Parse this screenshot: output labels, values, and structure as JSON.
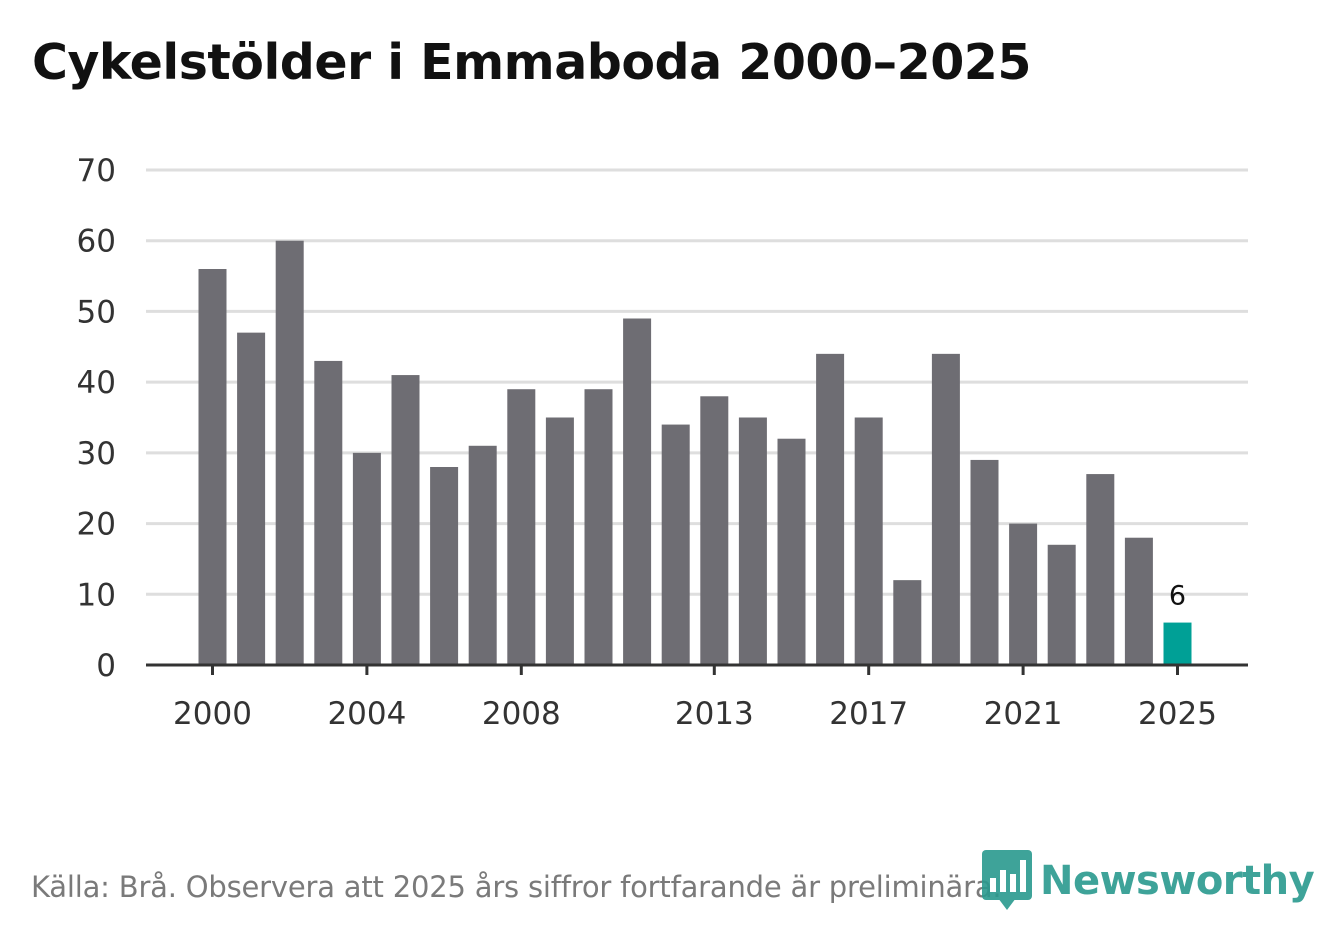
{
  "title": "Cykelstölder i Emmaboda 2000–2025",
  "source": "Källa: Brå. Observera att 2025 års siffror fortfarande är preliminära.",
  "brand": {
    "name": "Newsworthy",
    "icon": "newsworthy-logo-icon",
    "color": "#2a9a8e"
  },
  "colors": {
    "bar": "#6e6d73",
    "highlight": "#00a096",
    "grid": "#dedede",
    "axis": "#333333"
  },
  "chart_data": {
    "type": "bar",
    "title": "Cykelstölder i Emmaboda 2000–2025",
    "xlabel": "",
    "ylabel": "",
    "categories": [
      "2000",
      "2001",
      "2002",
      "2003",
      "2004",
      "2005",
      "2006",
      "2007",
      "2008",
      "2009",
      "2010",
      "2011",
      "2012",
      "2013",
      "2014",
      "2015",
      "2016",
      "2017",
      "2018",
      "2019",
      "2020",
      "2021",
      "2022",
      "2023",
      "2024",
      "2025"
    ],
    "values": [
      56,
      47,
      60,
      43,
      30,
      41,
      28,
      31,
      39,
      35,
      39,
      49,
      34,
      38,
      35,
      32,
      44,
      35,
      12,
      44,
      29,
      20,
      17,
      27,
      18,
      6
    ],
    "highlight_category": "2025",
    "data_labels": [
      {
        "category": "2025",
        "text": "6"
      }
    ],
    "ylim": [
      0,
      70
    ],
    "yticks": [
      0,
      10,
      20,
      30,
      40,
      50,
      60,
      70
    ],
    "xticks": [
      "2000",
      "2004",
      "2008",
      "2013",
      "2017",
      "2021",
      "2025"
    ],
    "grid": true,
    "legend": "none"
  }
}
